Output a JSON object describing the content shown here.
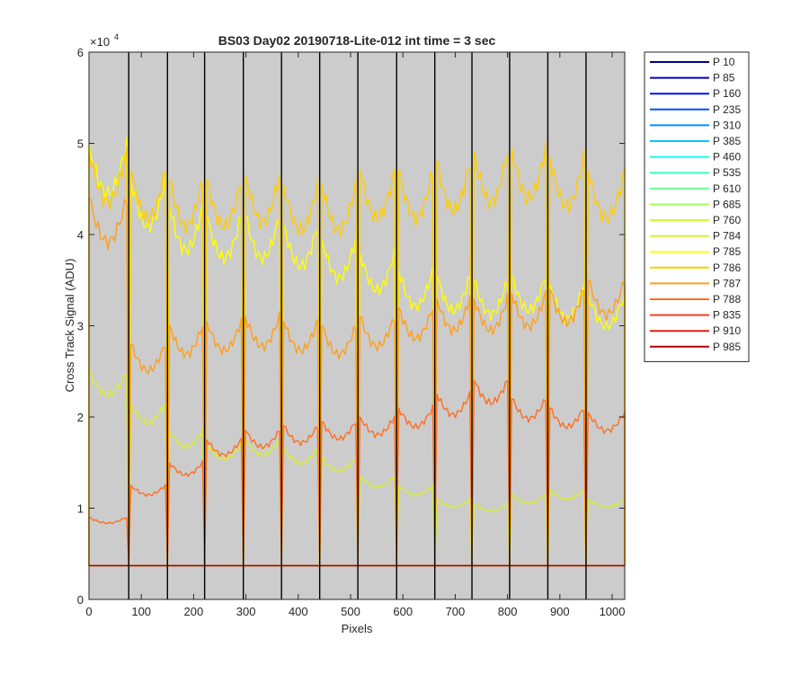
{
  "chart_data": {
    "type": "line",
    "title": "BS03 Day02 20190718-Lite-012 int time = 3 sec",
    "xlabel": "Pixels",
    "ylabel": "Cross Track Signal (ADU)",
    "xlim": [
      0,
      1024
    ],
    "ylim": [
      0,
      60000
    ],
    "x_ticks": [
      0,
      100,
      200,
      300,
      400,
      500,
      600,
      700,
      800,
      900,
      1000
    ],
    "y_ticks": [
      0,
      10000,
      20000,
      30000,
      40000,
      50000,
      60000
    ],
    "y_tick_labels": [
      "0",
      "1",
      "2",
      "3",
      "4",
      "5",
      "6"
    ],
    "y_exponent_base": "×10",
    "y_exponent_power": "4",
    "axes_background": "#cccccc",
    "grid": false,
    "legend_position": "outside-right",
    "segment_boundaries": [
      76,
      150,
      221,
      295,
      368,
      441,
      514,
      588,
      661,
      732,
      804,
      877,
      950
    ],
    "baseline_value": 3700,
    "series": [
      {
        "name": "P 10",
        "color": "#00008f",
        "segment_levels": [
          3700,
          3700,
          3700,
          3700,
          3700,
          3700,
          3700,
          3700,
          3700,
          3700,
          3700,
          3700,
          3700,
          3700
        ]
      },
      {
        "name": "P 85",
        "color": "#0000c8",
        "segment_levels": [
          3700,
          3700,
          3700,
          3700,
          3700,
          3700,
          3700,
          3700,
          3700,
          3700,
          3700,
          3700,
          3700,
          3700
        ]
      },
      {
        "name": "P 160",
        "color": "#0010ff",
        "segment_levels": [
          3700,
          3700,
          3700,
          3700,
          3700,
          3700,
          3700,
          3700,
          3700,
          3700,
          3700,
          3700,
          3700,
          3700
        ]
      },
      {
        "name": "P 235",
        "color": "#0050ff",
        "segment_levels": [
          3700,
          3700,
          3700,
          3700,
          3700,
          3700,
          3700,
          3700,
          3700,
          3700,
          3700,
          3700,
          3700,
          3700
        ]
      },
      {
        "name": "P 310",
        "color": "#0090ff",
        "segment_levels": [
          3700,
          3700,
          3700,
          3700,
          3700,
          3700,
          3700,
          3700,
          3700,
          3700,
          3700,
          3700,
          3700,
          3700
        ]
      },
      {
        "name": "P 385",
        "color": "#00c8ff",
        "segment_levels": [
          3700,
          3700,
          3700,
          3700,
          3700,
          3700,
          3700,
          3700,
          3700,
          3700,
          3700,
          3700,
          3700,
          3700
        ]
      },
      {
        "name": "P 460",
        "color": "#10ffef",
        "segment_levels": [
          3700,
          3700,
          3700,
          3700,
          3700,
          3700,
          3700,
          3700,
          3700,
          3700,
          3700,
          3700,
          3700,
          3700
        ]
      },
      {
        "name": "P 535",
        "color": "#40ffbf",
        "segment_levels": [
          3700,
          3700,
          3700,
          3700,
          3700,
          3700,
          3700,
          3700,
          3700,
          3700,
          3700,
          3700,
          3700,
          3700
        ]
      },
      {
        "name": "P 610",
        "color": "#70ff8f",
        "segment_levels": [
          3700,
          3700,
          3700,
          3700,
          3700,
          3700,
          3700,
          3700,
          3700,
          3700,
          3700,
          3700,
          3700,
          3700
        ]
      },
      {
        "name": "P 685",
        "color": "#a0ff60",
        "segment_levels": [
          3700,
          3700,
          3700,
          3700,
          3700,
          3700,
          3700,
          3700,
          3700,
          3700,
          3700,
          3700,
          3700,
          3700
        ]
      },
      {
        "name": "P 760",
        "color": "#c8ff38",
        "segment_levels": [
          3700,
          3700,
          3700,
          3700,
          3700,
          3700,
          3700,
          3700,
          3700,
          3700,
          3700,
          3700,
          3700,
          3700
        ]
      },
      {
        "name": "P 784",
        "color": "#d8f030",
        "segment_levels": [
          25000,
          21500,
          18500,
          17000,
          17500,
          16500,
          15500,
          13500,
          12500,
          11000,
          10500,
          11500,
          12000,
          11000
        ]
      },
      {
        "name": "P 785",
        "color": "#ffff00",
        "segment_levels": [
          50000,
          46000,
          43000,
          42000,
          42000,
          41000,
          39500,
          38000,
          36000,
          35500,
          35000,
          35500,
          34500,
          33500
        ]
      },
      {
        "name": "P 786",
        "color": "#ffcc00",
        "segment_levels": [
          49000,
          47000,
          46000,
          46000,
          46500,
          45500,
          45500,
          47000,
          47000,
          48000,
          49000,
          49500,
          48500,
          47000
        ]
      },
      {
        "name": "P 787",
        "color": "#ff9f1a",
        "segment_levels": [
          44000,
          28000,
          30000,
          30500,
          31000,
          30500,
          30000,
          31000,
          32000,
          33000,
          33000,
          33500,
          34000,
          35000
        ]
      },
      {
        "name": "P 788",
        "color": "#ff6f20",
        "segment_levels": [
          9000,
          12500,
          15000,
          17500,
          18500,
          19000,
          19500,
          20000,
          21000,
          22500,
          24000,
          22000,
          21000,
          20500
        ]
      },
      {
        "name": "P 835",
        "color": "#ff3c1a",
        "segment_levels": [
          3700,
          3700,
          3700,
          3700,
          3700,
          3700,
          3700,
          3700,
          3700,
          3700,
          3700,
          3700,
          3700,
          3700
        ]
      },
      {
        "name": "P 910",
        "color": "#e0200f",
        "segment_levels": [
          3700,
          3700,
          3700,
          3700,
          3700,
          3700,
          3700,
          3700,
          3700,
          3700,
          3700,
          3700,
          3700,
          3700
        ]
      },
      {
        "name": "P 985",
        "color": "#b00000",
        "segment_levels": [
          3700,
          3700,
          3700,
          3700,
          3700,
          3700,
          3700,
          3700,
          3700,
          3700,
          3700,
          3700,
          3700,
          3700
        ]
      }
    ]
  }
}
